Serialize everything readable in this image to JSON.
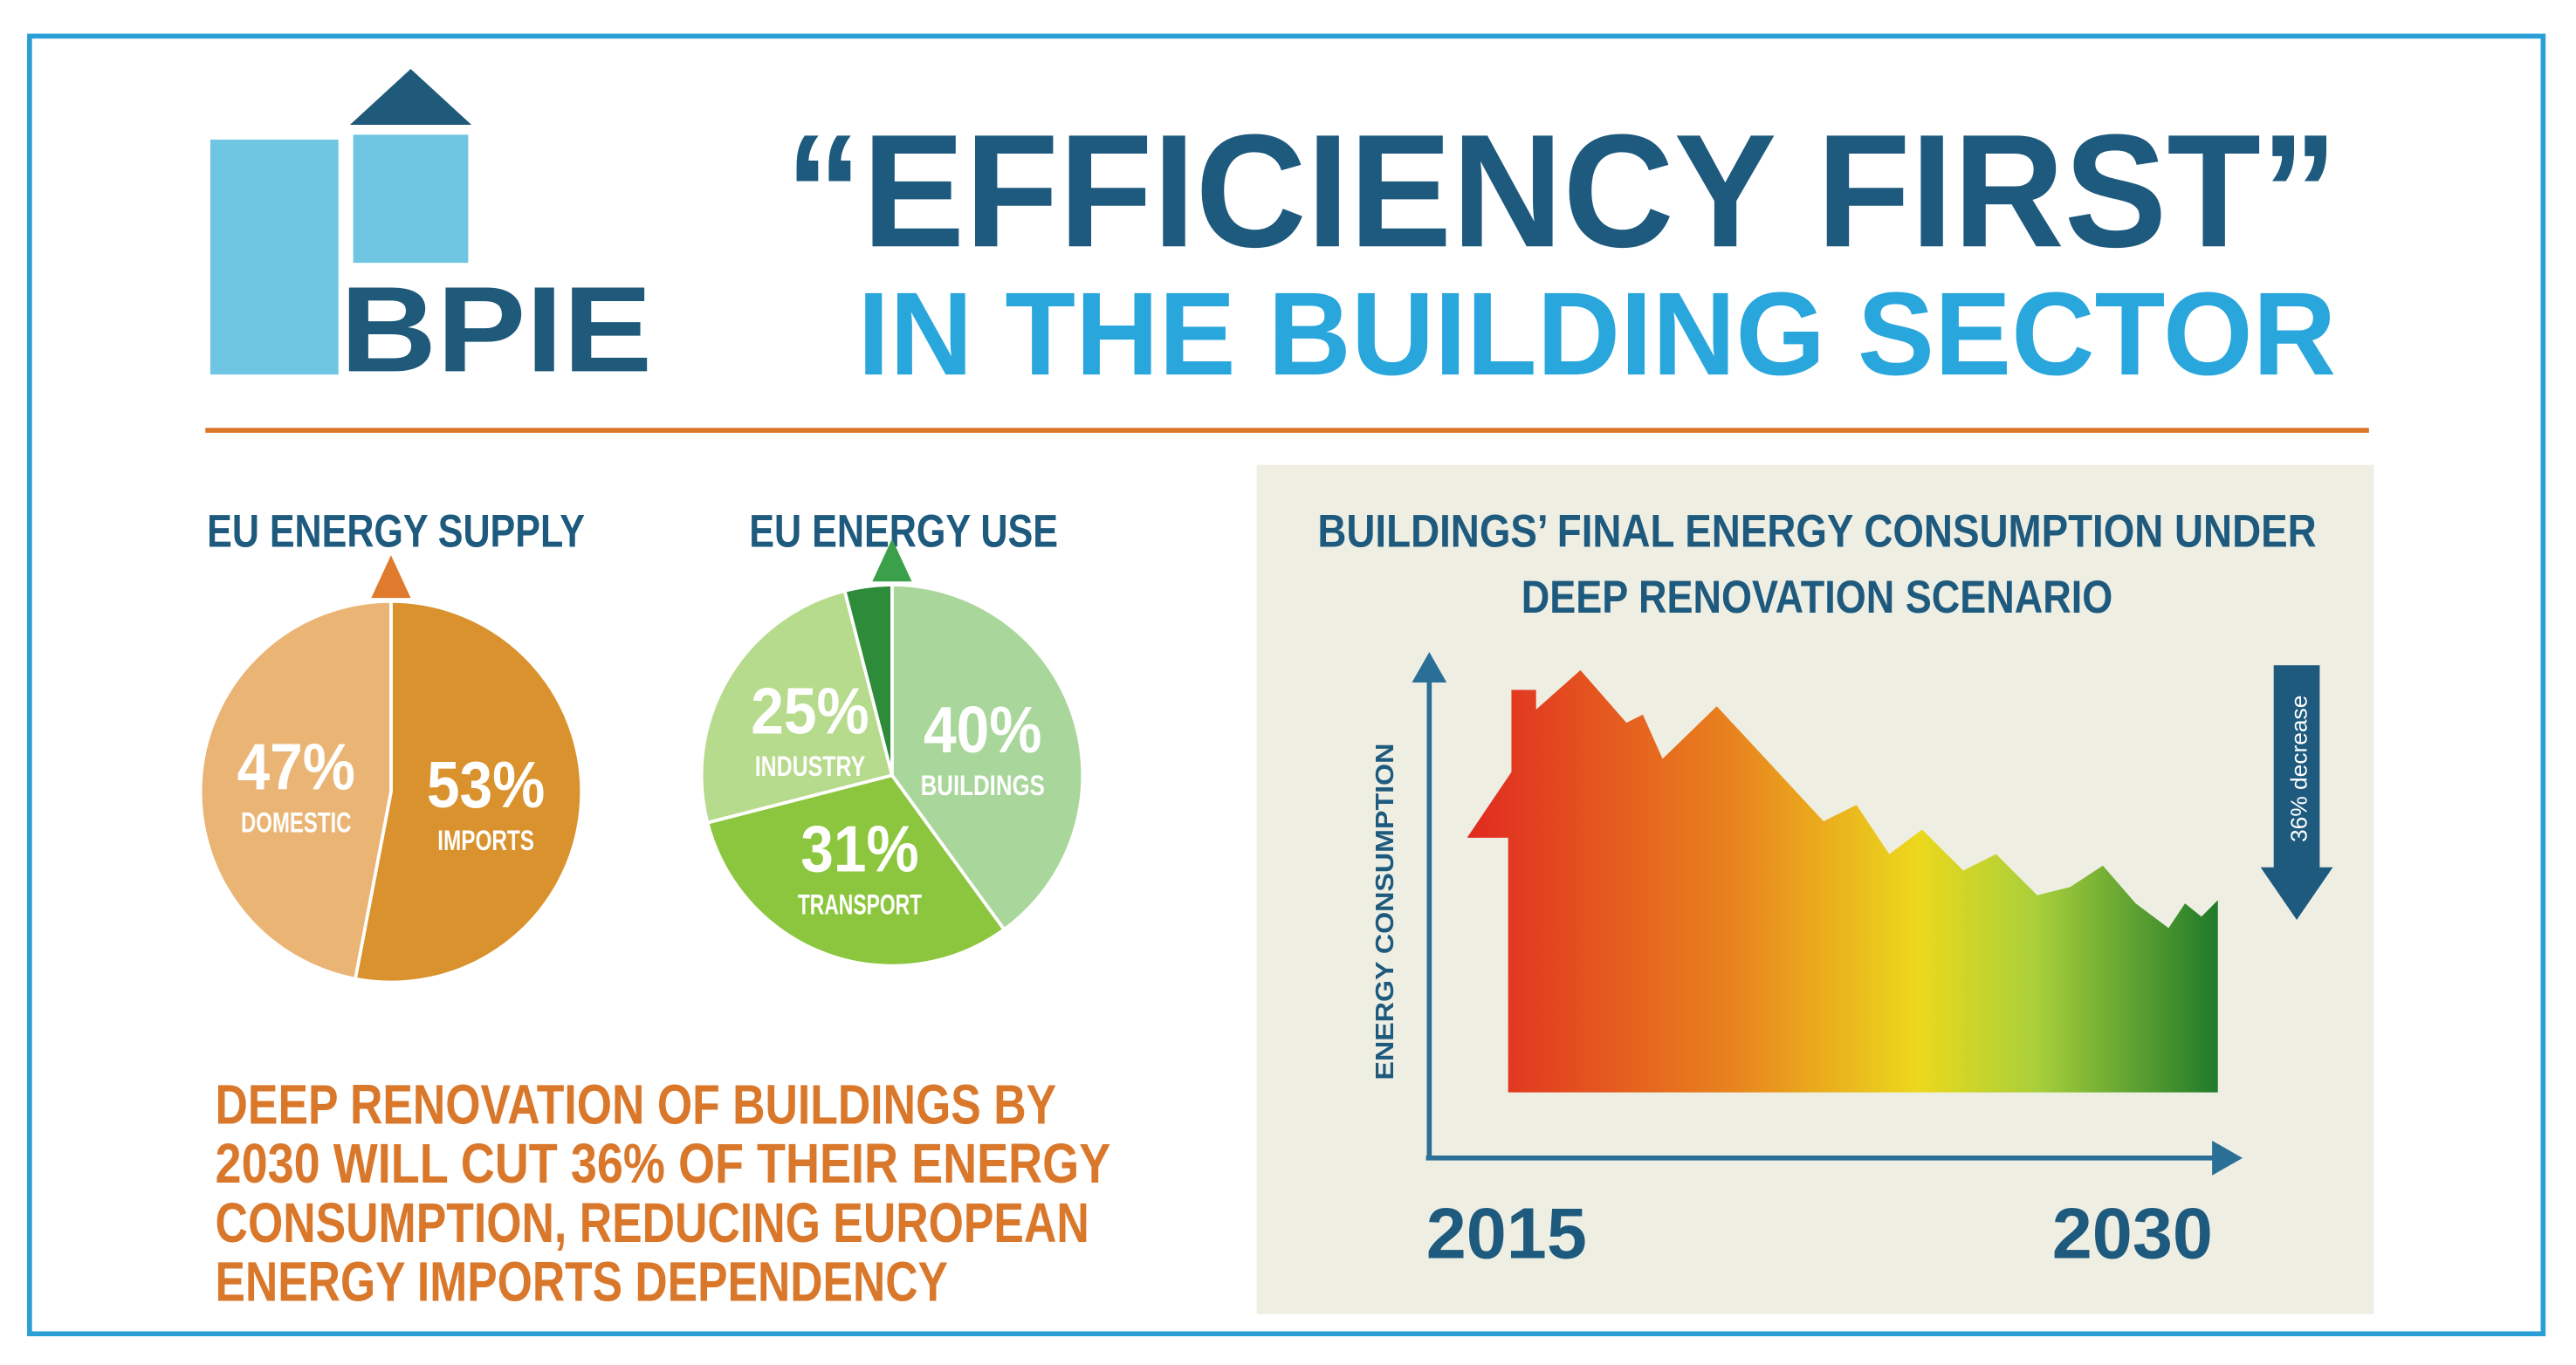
{
  "header": {
    "logo": "BPIE",
    "title": "“EFFICIENCY FIRST”",
    "subtitle": "IN THE BUILDING SECTOR"
  },
  "chart_data": [
    {
      "type": "pie",
      "title": "EU ENERGY SUPPLY",
      "categories": [
        "IMPORTS",
        "DOMESTIC"
      ],
      "values": [
        53,
        47
      ],
      "value_labels": [
        "53%",
        "47%"
      ],
      "colors": [
        "#d9922e",
        "#eab574"
      ]
    },
    {
      "type": "pie",
      "title": "EU ENERGY USE",
      "categories": [
        "BUILDINGS",
        "TRANSPORT",
        "INDUSTRY",
        null
      ],
      "values": [
        40,
        31,
        25,
        4
      ],
      "value_labels": [
        "40%",
        "31%",
        "25%",
        null
      ],
      "colors": [
        "#a9d69a",
        "#8cc63f",
        "#b7db8c",
        "#2e8b3a"
      ]
    }
  ],
  "note": [
    "DEEP RENOVATION OF BUILDINGS BY",
    "2030 WILL CUT 36% OF THEIR ENERGY",
    "CONSUMPTION, REDUCING EUROPEAN",
    "ENERGY IMPORTS DEPENDENCY"
  ],
  "consumption_chart": {
    "title": [
      "BUILDINGS’ FINAL ENERGY CONSUMPTION UNDER",
      "DEEP RENOVATION SCENARIO"
    ],
    "y_label": "ENERGY CONSUMPTION",
    "x_start": "2015",
    "x_end": "2030",
    "annotation": "36% decrease"
  }
}
